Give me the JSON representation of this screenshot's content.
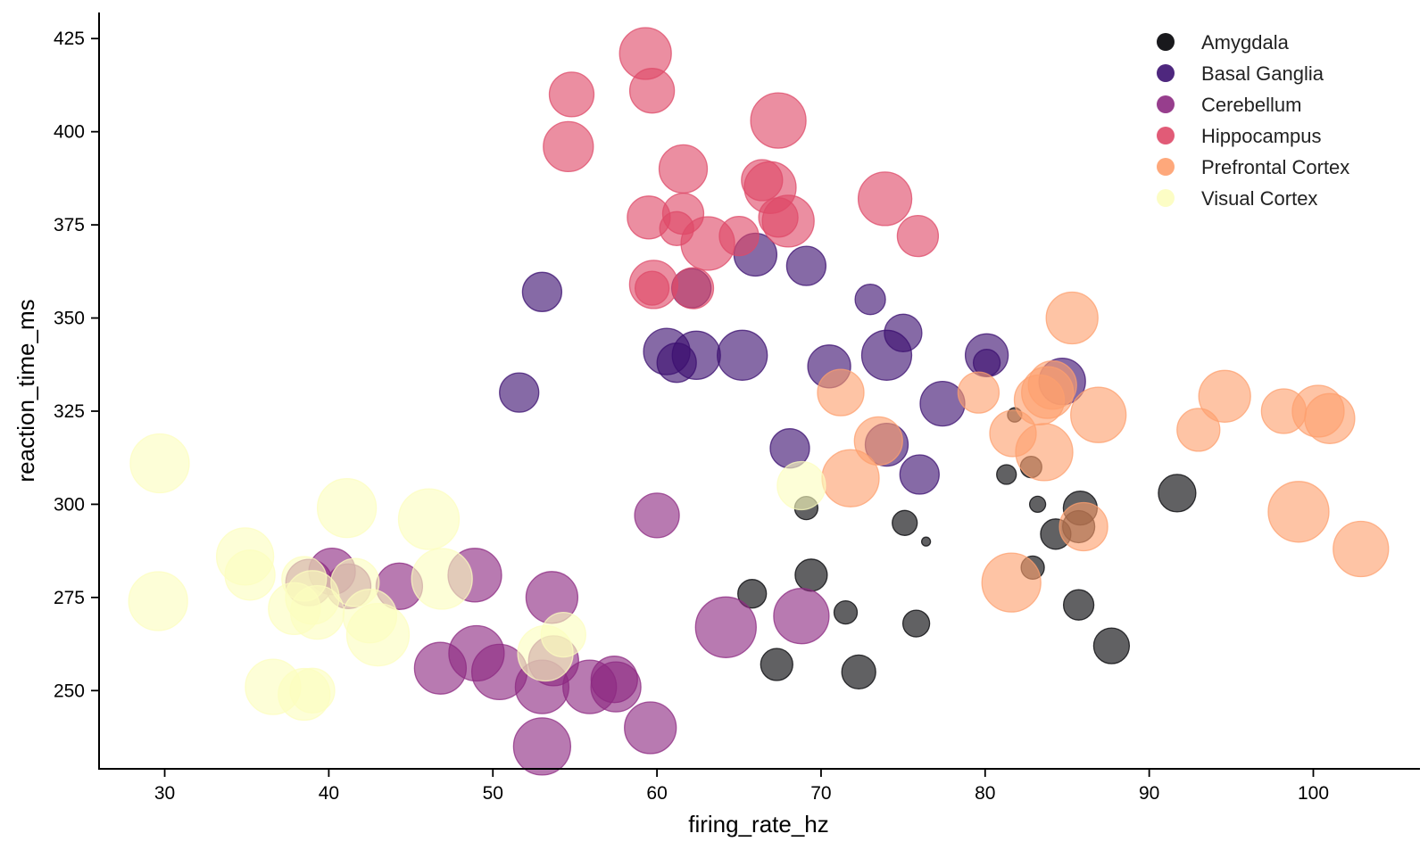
{
  "chart_data": {
    "type": "scatter",
    "title": "",
    "xlabel": "firing_rate_hz",
    "ylabel": "reaction_time_ms",
    "xlim": [
      26,
      106.5
    ],
    "ylim": [
      229,
      432
    ],
    "xticks": [
      30,
      40,
      50,
      60,
      70,
      80,
      90,
      100
    ],
    "yticks": [
      250,
      275,
      300,
      325,
      350,
      375,
      400,
      425
    ],
    "grid": false,
    "legend_position": "top-right",
    "size_encoding": "bubble area",
    "series": [
      {
        "name": "Amygdala",
        "color": "#000004",
        "points": [
          [
            81.8,
            324,
            8
          ],
          [
            82.8,
            310,
            12
          ],
          [
            81.3,
            308,
            11
          ],
          [
            83.2,
            300,
            9
          ],
          [
            85.8,
            299,
            19
          ],
          [
            85.7,
            294,
            18
          ],
          [
            84.3,
            292,
            17
          ],
          [
            76.4,
            290,
            5
          ],
          [
            75.1,
            295,
            14
          ],
          [
            69.1,
            299,
            13
          ],
          [
            82.9,
            283,
            13
          ],
          [
            85.7,
            273,
            17
          ],
          [
            87.7,
            262,
            20
          ],
          [
            91.7,
            303,
            21
          ],
          [
            69.4,
            281,
            18
          ],
          [
            71.5,
            271,
            13
          ],
          [
            75.8,
            268,
            15
          ],
          [
            65.8,
            276,
            16
          ],
          [
            67.3,
            257,
            18
          ],
          [
            72.3,
            255,
            19
          ]
        ]
      },
      {
        "name": "Basal Ganglia",
        "color": "#3b0f70",
        "points": [
          [
            53.0,
            357,
            22
          ],
          [
            51.6,
            330,
            22
          ],
          [
            62.1,
            358,
            22
          ],
          [
            66.0,
            367,
            24
          ],
          [
            69.1,
            364,
            22
          ],
          [
            73.0,
            355,
            17
          ],
          [
            75.0,
            346,
            21
          ],
          [
            60.6,
            341,
            26
          ],
          [
            61.2,
            338,
            22
          ],
          [
            62.4,
            340,
            27
          ],
          [
            65.2,
            340,
            28
          ],
          [
            70.5,
            337,
            24
          ],
          [
            74.0,
            340,
            28
          ],
          [
            80.1,
            340,
            24
          ],
          [
            80.1,
            338,
            15
          ],
          [
            84.7,
            333,
            26
          ],
          [
            77.4,
            327,
            25
          ],
          [
            68.1,
            315,
            22
          ],
          [
            74.0,
            316,
            24
          ],
          [
            76.0,
            308,
            22
          ]
        ]
      },
      {
        "name": "Cerebellum",
        "color": "#8c2981",
        "points": [
          [
            60.0,
            297,
            25
          ],
          [
            40.2,
            282,
            26
          ],
          [
            41.2,
            278,
            25
          ],
          [
            38.8,
            279,
            26
          ],
          [
            44.3,
            278,
            26
          ],
          [
            48.9,
            281,
            30
          ],
          [
            53.6,
            275,
            29
          ],
          [
            46.8,
            256,
            29
          ],
          [
            49.0,
            260,
            31
          ],
          [
            50.4,
            255,
            31
          ],
          [
            53.0,
            251,
            30
          ],
          [
            53.7,
            258,
            28
          ],
          [
            55.9,
            251,
            30
          ],
          [
            57.4,
            253,
            26
          ],
          [
            57.5,
            251,
            28
          ],
          [
            59.6,
            240,
            29
          ],
          [
            53.0,
            235,
            32
          ],
          [
            64.2,
            267,
            34
          ],
          [
            68.8,
            270,
            31
          ]
        ]
      },
      {
        "name": "Hippocampus",
        "color": "#de4968",
        "points": [
          [
            59.3,
            421,
            29
          ],
          [
            59.7,
            411,
            25
          ],
          [
            54.8,
            410,
            25
          ],
          [
            54.6,
            396,
            28
          ],
          [
            67.4,
            403,
            31
          ],
          [
            61.6,
            390,
            27
          ],
          [
            66.4,
            387,
            23
          ],
          [
            66.9,
            385,
            29
          ],
          [
            73.9,
            382,
            30
          ],
          [
            61.6,
            378,
            23
          ],
          [
            59.5,
            377,
            24
          ],
          [
            61.2,
            374,
            19
          ],
          [
            63.1,
            370,
            30
          ],
          [
            65.0,
            372,
            22
          ],
          [
            67.4,
            377,
            22
          ],
          [
            68.0,
            376,
            29
          ],
          [
            75.9,
            372,
            23
          ],
          [
            59.8,
            359,
            27
          ],
          [
            59.7,
            358,
            19
          ],
          [
            62.2,
            358,
            23
          ]
        ]
      },
      {
        "name": "Prefrontal Cortex",
        "color": "#fe9f6d",
        "points": [
          [
            85.3,
            350,
            29
          ],
          [
            71.2,
            330,
            26
          ],
          [
            79.6,
            330,
            23
          ],
          [
            83.3,
            328,
            28
          ],
          [
            84.1,
            332,
            27
          ],
          [
            83.8,
            330,
            29
          ],
          [
            86.9,
            324,
            31
          ],
          [
            81.7,
            319,
            26
          ],
          [
            83.6,
            314,
            32
          ],
          [
            73.5,
            317,
            27
          ],
          [
            71.8,
            307,
            32
          ],
          [
            93.0,
            320,
            24
          ],
          [
            94.6,
            329,
            29
          ],
          [
            98.2,
            325,
            25
          ],
          [
            100.3,
            325,
            29
          ],
          [
            101.0,
            323,
            28
          ],
          [
            99.1,
            298,
            34
          ],
          [
            86.0,
            294,
            27
          ],
          [
            81.6,
            279,
            33
          ],
          [
            102.9,
            288,
            31
          ]
        ]
      },
      {
        "name": "Visual Cortex",
        "color": "#fcfdbf",
        "points": [
          [
            29.7,
            311,
            33
          ],
          [
            34.9,
            286,
            32
          ],
          [
            35.2,
            281,
            28
          ],
          [
            29.6,
            274,
            33
          ],
          [
            41.1,
            299,
            33
          ],
          [
            46.1,
            296,
            34
          ],
          [
            38.5,
            280,
            25
          ],
          [
            39.0,
            275,
            30
          ],
          [
            37.9,
            272,
            29
          ],
          [
            39.3,
            271,
            30
          ],
          [
            41.6,
            279,
            27
          ],
          [
            42.5,
            270,
            30
          ],
          [
            43.0,
            265,
            35
          ],
          [
            46.9,
            280,
            34
          ],
          [
            36.6,
            251,
            31
          ],
          [
            38.5,
            249,
            29
          ],
          [
            39.0,
            250,
            25
          ],
          [
            53.2,
            260,
            31
          ],
          [
            54.3,
            265,
            25
          ],
          [
            68.8,
            305,
            27
          ]
        ]
      }
    ]
  }
}
